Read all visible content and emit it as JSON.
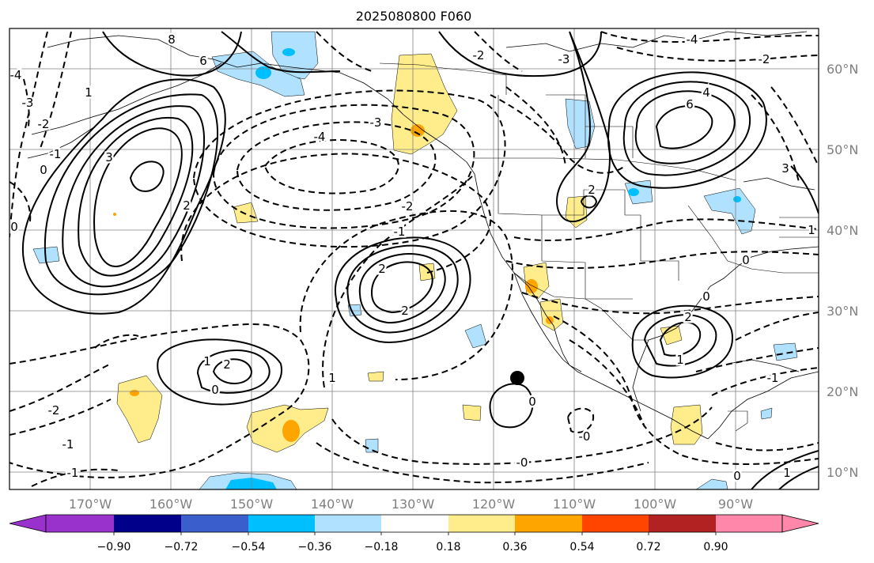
{
  "title": "2025080800 F060",
  "lon_labels": [
    "170°W",
    "160°W",
    "150°W",
    "140°W",
    "130°W",
    "120°W",
    "110°W",
    "100°W",
    "90°W"
  ],
  "lat_labels": [
    "60°N",
    "50°N",
    "40°N",
    "30°N",
    "20°N",
    "10°N"
  ],
  "colorbar": {
    "ticks": [
      "−0.90",
      "−0.72",
      "−0.54",
      "−0.36",
      "−0.18",
      "0.18",
      "0.36",
      "0.54",
      "0.72",
      "0.90"
    ],
    "colors": [
      "#9932cc",
      "#00008b",
      "#3a5fcd",
      "#00bfff",
      "#b0e2ff",
      "#ffffff",
      "#ffec8b",
      "#ffa500",
      "#ff4500",
      "#b22222",
      "#ff88aa"
    ]
  },
  "contour_labels": [
    "8",
    "6",
    "-4",
    "-3",
    "-2",
    "-1",
    "0",
    "1",
    "3",
    "-4",
    "-3",
    "-2",
    "2",
    "-1",
    "6",
    "4",
    "2",
    "2",
    "1",
    "2",
    "1",
    "0",
    "0",
    "-1",
    "-2",
    "1",
    "2",
    "-4",
    "-2",
    "-3",
    "3",
    "-2",
    "2",
    "-0",
    "1",
    "-1",
    "1",
    "-0",
    "0",
    "-1",
    "0",
    "0",
    "0"
  ],
  "marker": "storm-center-dot",
  "colors": {
    "positive": "#ffec8b",
    "positive_strong": "#ffa500",
    "negative": "#b0e2ff",
    "negative_strong": "#00bfff",
    "grid": "#808080"
  }
}
